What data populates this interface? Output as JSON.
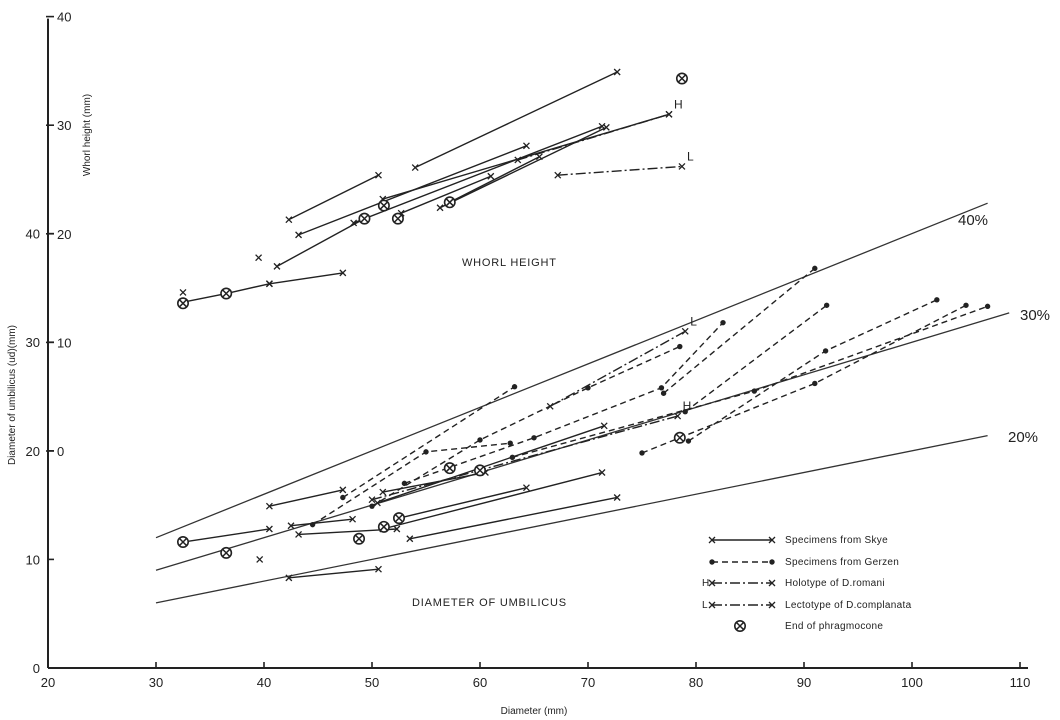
{
  "chart_data": {
    "type": "scatter",
    "xlabel": "Diameter (mm)",
    "ylabel_upper": "Whorl height (mm)",
    "ylabel_lower": "Diameter of umbilicus (ud)(mm)",
    "xlim": [
      20,
      110
    ],
    "ylim": [
      0,
      40
    ],
    "x_ticks": [
      "20",
      "30",
      "40",
      "50",
      "60",
      "70",
      "80",
      "90",
      "100",
      "110"
    ],
    "y_ticks_left": [
      "0",
      "10",
      "20",
      "30",
      "40"
    ],
    "y_ticks_right": [
      "0",
      "10",
      "20",
      "30",
      "40"
    ],
    "annotations": [
      "WHORL HEIGHT",
      "DIAMETER OF UMBILICUS"
    ],
    "reference_lines": [
      {
        "label": "40%",
        "ratio": 0.4,
        "x": [
          30,
          107
        ]
      },
      {
        "label": "30%",
        "ratio": 0.3,
        "x": [
          30,
          109
        ]
      },
      {
        "label": "20%",
        "ratio": 0.2,
        "x": [
          30,
          107
        ]
      }
    ],
    "legend": [
      {
        "label": "Specimens from Skye",
        "style": "solid-x"
      },
      {
        "label": "Specimens from Gerzen",
        "style": "dashed-dot"
      },
      {
        "label": "Holotype of D.romani",
        "prefix": "H",
        "style": "dashdot-x"
      },
      {
        "label": "Lectotype of D.complanata",
        "prefix": "L",
        "style": "dashdot-x"
      },
      {
        "label": "End of phragmocone",
        "style": "circle-x"
      }
    ],
    "whorl_height_series": [
      {
        "group": "Skye",
        "points": [
          [
            54,
            26.1
          ],
          [
            72.7,
            34.9
          ]
        ]
      },
      {
        "group": "Skye",
        "points": [
          [
            42.3,
            21.3
          ],
          [
            50.6,
            25.4
          ]
        ]
      },
      {
        "group": "Skye",
        "points": [
          [
            43.2,
            19.9
          ],
          [
            64.3,
            28.1
          ]
        ]
      },
      {
        "group": "Skye",
        "points": [
          [
            48.3,
            21.0
          ],
          [
            71.3,
            29.9
          ]
        ]
      },
      {
        "group": "Skye",
        "points": [
          [
            51,
            23.2
          ],
          [
            77.5,
            31.0
          ]
        ]
      },
      {
        "group": "Skye",
        "points": [
          [
            52.7,
            21.9
          ],
          [
            61.0,
            25.3
          ]
        ]
      },
      {
        "group": "Skye",
        "points": [
          [
            56.3,
            22.4
          ],
          [
            71.7,
            29.8
          ]
        ]
      },
      {
        "group": "Skye",
        "points": [
          [
            57.2,
            22.9
          ],
          [
            65.5,
            27.1
          ]
        ]
      },
      {
        "group": "Skye",
        "points": [
          [
            41.2,
            17.0
          ],
          [
            49.3,
            21.4
          ]
        ]
      },
      {
        "group": "Skye",
        "points": [
          [
            40.5,
            15.4
          ],
          [
            47.3,
            16.4
          ]
        ]
      },
      {
        "group": "Skye",
        "points": [
          [
            32.5,
            13.7
          ],
          [
            36.5,
            14.5
          ],
          [
            40.5,
            15.4
          ]
        ]
      },
      {
        "group": "Skye",
        "points": [
          [
            32.5,
            14.6
          ]
        ]
      },
      {
        "group": "Skye",
        "points": [
          [
            39.5,
            17.8
          ]
        ]
      },
      {
        "group": "Holotype",
        "marker": "H",
        "points": [
          [
            63.5,
            26.8
          ],
          [
            77.5,
            31.0
          ]
        ]
      },
      {
        "group": "Lectotype",
        "marker": "L",
        "points": [
          [
            67.2,
            25.4
          ],
          [
            78.7,
            26.2
          ]
        ]
      }
    ],
    "whorl_height_phragmocone_ends": [
      [
        32.5,
        13.6
      ],
      [
        36.5,
        14.5
      ],
      [
        49.3,
        21.4
      ],
      [
        51.1,
        22.6
      ],
      [
        52.4,
        21.4
      ],
      [
        57.2,
        22.9
      ],
      [
        78.7,
        34.3
      ]
    ],
    "umbilicus_series": [
      {
        "group": "Skye",
        "points": [
          [
            40.5,
            14.9
          ],
          [
            47.3,
            16.4
          ]
        ]
      },
      {
        "group": "Skye",
        "points": [
          [
            32.5,
            11.6
          ],
          [
            40.5,
            12.8
          ]
        ]
      },
      {
        "group": "Skye",
        "points": [
          [
            42.5,
            13.1
          ],
          [
            48.2,
            13.7
          ]
        ]
      },
      {
        "group": "Skye",
        "points": [
          [
            43.2,
            12.3
          ],
          [
            52.3,
            12.8
          ]
        ]
      },
      {
        "group": "Skye",
        "points": [
          [
            51,
            12.8
          ],
          [
            71.3,
            18.0
          ]
        ]
      },
      {
        "group": "Skye",
        "points": [
          [
            52.5,
            13.8
          ],
          [
            64.3,
            16.6
          ]
        ]
      },
      {
        "group": "Skye",
        "points": [
          [
            53.5,
            11.9
          ],
          [
            72.7,
            15.7
          ]
        ]
      },
      {
        "group": "Skye",
        "points": [
          [
            51,
            16.2
          ],
          [
            60.5,
            18.0
          ]
        ]
      },
      {
        "group": "Skye",
        "points": [
          [
            50.5,
            15.2
          ],
          [
            71.5,
            22.3
          ]
        ]
      },
      {
        "group": "Skye",
        "points": [
          [
            42.3,
            8.3
          ],
          [
            50.6,
            9.1
          ]
        ]
      },
      {
        "group": "Skye",
        "points": [
          [
            39.6,
            10.0
          ]
        ]
      },
      {
        "group": "Gerzen",
        "points": [
          [
            47.3,
            15.7
          ],
          [
            63.2,
            25.9
          ]
        ]
      },
      {
        "group": "Gerzen",
        "points": [
          [
            50,
            14.9
          ],
          [
            60,
            21.0
          ],
          [
            70,
            25.8
          ],
          [
            78.5,
            29.6
          ]
        ]
      },
      {
        "group": "Gerzen",
        "points": [
          [
            44.5,
            13.2
          ],
          [
            55,
            19.9
          ],
          [
            62.8,
            20.7
          ]
        ]
      },
      {
        "group": "Gerzen",
        "points": [
          [
            53,
            17.0
          ],
          [
            65,
            21.2
          ],
          [
            76.8,
            25.8
          ],
          [
            82.5,
            31.8
          ]
        ]
      },
      {
        "group": "Gerzen",
        "points": [
          [
            77,
            25.3
          ],
          [
            91,
            36.8
          ]
        ]
      },
      {
        "group": "Gerzen",
        "points": [
          [
            79,
            23.6
          ],
          [
            92.1,
            33.4
          ]
        ]
      },
      {
        "group": "Gerzen",
        "points": [
          [
            79.3,
            20.9
          ],
          [
            92.0,
            29.2
          ],
          [
            102.3,
            33.9
          ]
        ]
      },
      {
        "group": "Gerzen",
        "points": [
          [
            75,
            19.8
          ],
          [
            91,
            26.2
          ],
          [
            105,
            33.4
          ]
        ]
      },
      {
        "group": "Gerzen",
        "points": [
          [
            63,
            19.4
          ],
          [
            85.4,
            25.5
          ],
          [
            107,
            33.3
          ]
        ]
      },
      {
        "group": "Holotype",
        "marker": "H",
        "points": [
          [
            50,
            15.5
          ],
          [
            78.3,
            23.2
          ]
        ]
      },
      {
        "group": "Lectotype",
        "marker": "L",
        "points": [
          [
            66.5,
            24.1
          ],
          [
            79,
            31.0
          ]
        ]
      }
    ],
    "umbilicus_phragmocone_ends": [
      [
        32.5,
        11.6
      ],
      [
        36.5,
        10.6
      ],
      [
        48.8,
        11.9
      ],
      [
        51.1,
        13.0
      ],
      [
        52.5,
        13.8
      ],
      [
        57.2,
        18.4
      ],
      [
        60.0,
        18.2
      ],
      [
        78.5,
        21.2
      ]
    ]
  }
}
